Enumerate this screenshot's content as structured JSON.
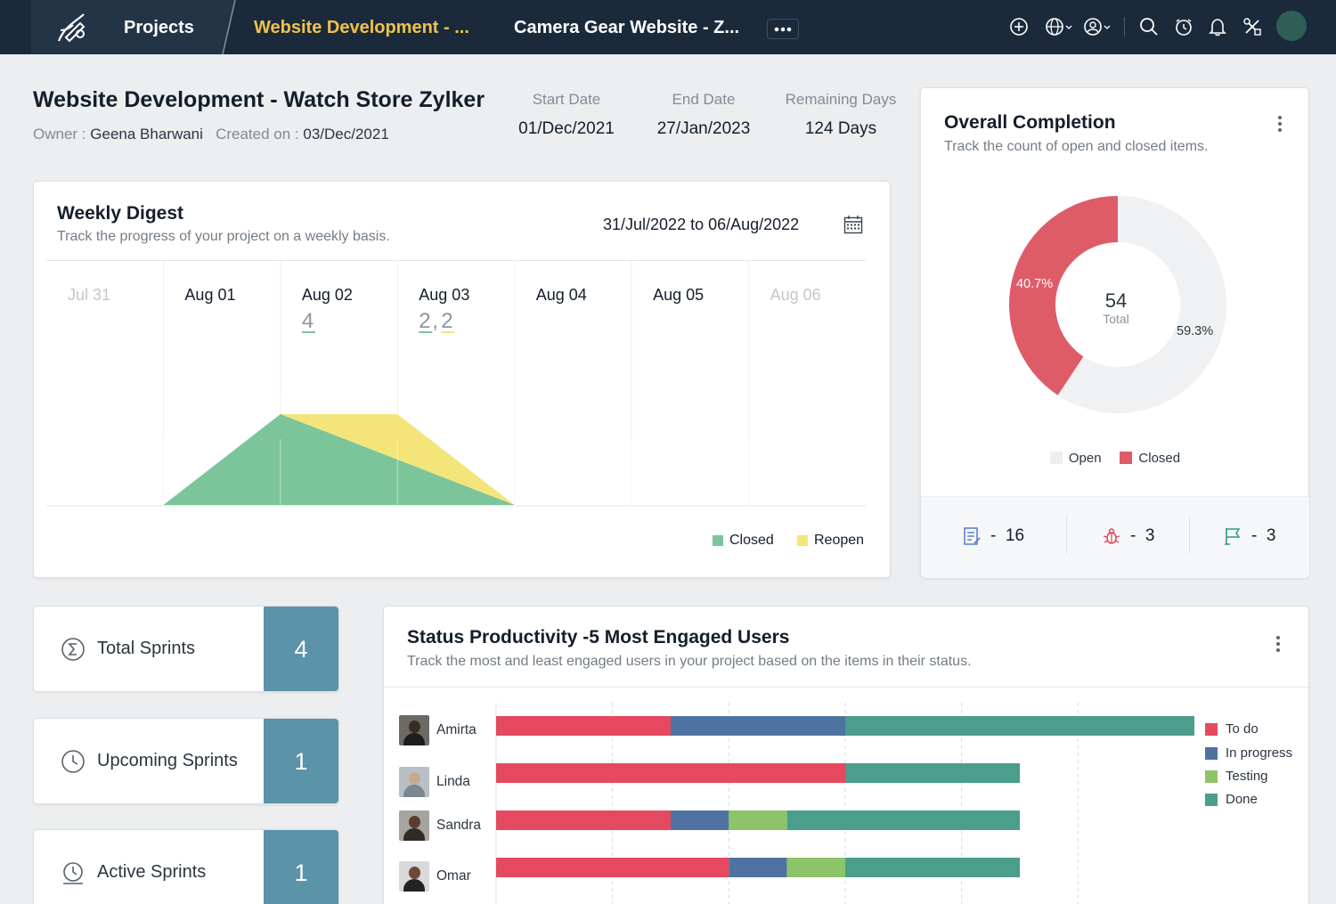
{
  "nav": {
    "projects_label": "Projects",
    "crumb_1": "Website Development - ...",
    "crumb_2": "Camera Gear Website - Z...",
    "colors": {
      "bar": "#1b2a3b",
      "crumb_active": "#f0c24b"
    },
    "icons": [
      "add-icon",
      "globe-icon",
      "user-access-icon",
      "search-icon",
      "timer-icon",
      "bell-icon",
      "tools-icon"
    ]
  },
  "project": {
    "title": "Website Development - Watch Store Zylker",
    "owner_label": "Owner :",
    "owner": "Geena Bharwani",
    "created_label": "Created on :",
    "created": "03/Dec/2021",
    "start_label": "Start Date",
    "start": "01/Dec/2021",
    "end_label": "End Date",
    "end": "27/Jan/2023",
    "remaining_label": "Remaining Days",
    "remaining": "124 Days"
  },
  "weekly_digest": {
    "title": "Weekly Digest",
    "subtitle": "Track the progress of your project on a weekly basis.",
    "range": "31/Jul/2022  to  06/Aug/2022",
    "days": [
      {
        "label": "Jul 31",
        "dim": true,
        "counts": []
      },
      {
        "label": "Aug 01",
        "dim": false,
        "counts": []
      },
      {
        "label": "Aug 02",
        "dim": false,
        "counts": [
          "4"
        ]
      },
      {
        "label": "Aug 03",
        "dim": false,
        "counts": [
          "2",
          "2"
        ]
      },
      {
        "label": "Aug 04",
        "dim": false,
        "counts": []
      },
      {
        "label": "Aug 05",
        "dim": false,
        "counts": []
      },
      {
        "label": "Aug 06",
        "dim": true,
        "counts": []
      }
    ],
    "legend_closed": "Closed",
    "legend_reopen": "Reopen"
  },
  "chart_data": [
    {
      "type": "area",
      "x": [
        "Jul 31",
        "Aug 01",
        "Aug 02",
        "Aug 03",
        "Aug 04",
        "Aug 05",
        "Aug 06"
      ],
      "series": [
        {
          "name": "Closed",
          "color": "#7cc59b",
          "values": [
            0,
            0,
            4,
            2,
            0,
            0,
            0
          ]
        },
        {
          "name": "Reopen",
          "color": "#f4e57a",
          "values": [
            0,
            0,
            0,
            2,
            0,
            0,
            0
          ]
        }
      ],
      "ylim": [
        0,
        8
      ]
    },
    {
      "type": "pie",
      "title": "Overall Completion",
      "total": "54",
      "total_label": "Total",
      "slices": [
        {
          "name": "Open",
          "value": 59.3,
          "label": "59.3%",
          "color": "#f0f1f3"
        },
        {
          "name": "Closed",
          "value": 40.7,
          "label": "40.7%",
          "color": "#de5c68"
        }
      ]
    },
    {
      "type": "bar",
      "orientation": "horizontal",
      "stacked": true,
      "categories": [
        "Amirta",
        "Linda",
        "Sandra",
        "Omar"
      ],
      "series": [
        {
          "name": "To do",
          "color": "#e5495f",
          "values": [
            3,
            6,
            3,
            4
          ]
        },
        {
          "name": "In progress",
          "color": "#4f73a0",
          "values": [
            3,
            0,
            1,
            1
          ]
        },
        {
          "name": "Testing",
          "color": "#8dc468",
          "values": [
            0,
            0,
            1,
            1
          ]
        },
        {
          "name": "Done",
          "color": "#4b9d8c",
          "values": [
            6,
            3,
            4,
            3
          ]
        }
      ],
      "xlim": [
        0,
        12
      ]
    }
  ],
  "overall": {
    "title": "Overall Completion",
    "subtitle": "Track the count of open and closed items.",
    "closed_pct": "40.7%",
    "open_pct": "59.3%",
    "total": "54",
    "total_label": "Total",
    "legend_open": "Open",
    "legend_closed": "Closed",
    "stats": [
      {
        "icon": "task-icon",
        "sep": "-",
        "value": "16"
      },
      {
        "icon": "bug-icon",
        "sep": "-",
        "value": "3"
      },
      {
        "icon": "milestone-flag-icon",
        "sep": "-",
        "value": "3"
      }
    ]
  },
  "sprints": [
    {
      "label": "Total Sprints",
      "count": "4",
      "icon": "sigma-icon"
    },
    {
      "label": "Upcoming Sprints",
      "count": "1",
      "icon": "clock-icon"
    },
    {
      "label": "Active Sprints",
      "count": "1",
      "icon": "active-clock-icon"
    }
  ],
  "status_productivity": {
    "title": "Status Productivity -5 Most Engaged Users",
    "subtitle": "Track the most and least engaged users in your project based on the items in their status.",
    "users": [
      "Amirta",
      "Linda",
      "Sandra",
      "Omar"
    ],
    "legend": [
      "To do",
      "In progress",
      "Testing",
      "Done"
    ]
  }
}
